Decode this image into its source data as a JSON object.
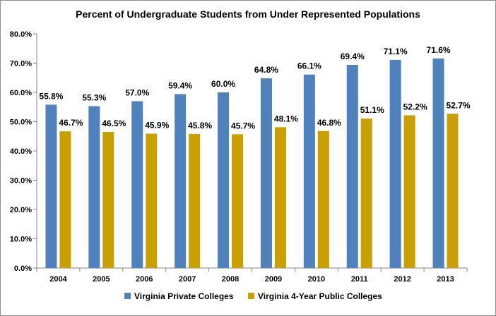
{
  "chart_data": {
    "type": "bar",
    "title": "Percent of Undergraduate Students from Under Represented Populations",
    "xlabel": "",
    "ylabel": "",
    "categories": [
      "2004",
      "2005",
      "2006",
      "2007",
      "2008",
      "2009",
      "2010",
      "2011",
      "2012",
      "2013"
    ],
    "series": [
      {
        "name": "Virginia Private Colleges",
        "color": "#4f81bd",
        "values": [
          55.8,
          55.3,
          57.0,
          59.4,
          60.0,
          64.8,
          66.1,
          69.4,
          71.1,
          71.6
        ],
        "labels": [
          "55.8%",
          "55.3%",
          "57.0%",
          "59.4%",
          "60.0%",
          "64.8%",
          "66.1%",
          "69.4%",
          "71.1%",
          "71.6%"
        ]
      },
      {
        "name": "Virginia 4-Year Public Colleges",
        "color": "#c9a000",
        "values": [
          46.7,
          46.5,
          45.9,
          45.8,
          45.7,
          48.1,
          46.8,
          51.1,
          52.2,
          52.7
        ],
        "labels": [
          "46.7%",
          "46.5%",
          "45.9%",
          "45.8%",
          "45.7%",
          "48.1%",
          "46.8%",
          "51.1%",
          "52.2%",
          "52.7%"
        ]
      }
    ],
    "ylim": [
      0,
      80
    ],
    "yticks": [
      0,
      10,
      20,
      30,
      40,
      50,
      60,
      70,
      80
    ],
    "ytick_labels": [
      "0.0%",
      "10.0%",
      "20.0%",
      "30.0%",
      "40.0%",
      "50.0%",
      "60.0%",
      "70.0%",
      "80.0%"
    ],
    "grid": false,
    "legend_position": "bottom"
  }
}
